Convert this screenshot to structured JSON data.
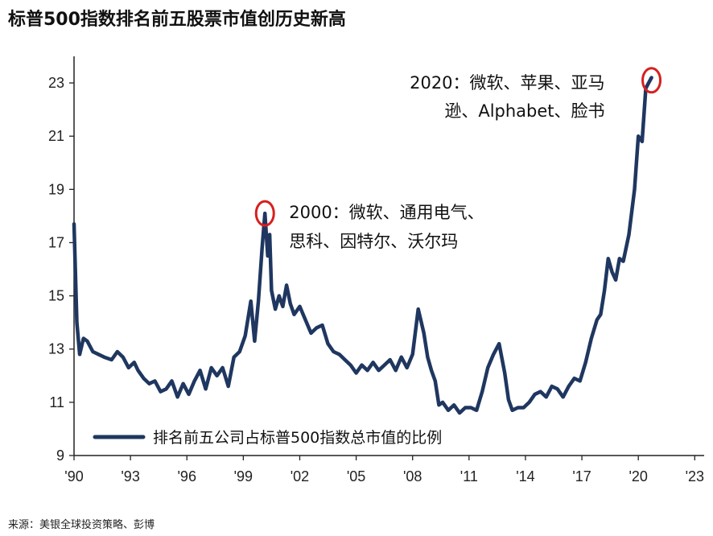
{
  "title": "标普500指数排名前五股票市值创历史新高",
  "source": "来源：美银全球投资策略、彭博",
  "colors": {
    "series": "#1f3760",
    "highlight": "#d62020",
    "axis": "#222222"
  },
  "chart_data": {
    "type": "line",
    "title": "标普500指数排名前五股票市值创历史新高",
    "xlabel": "",
    "ylabel": "",
    "xlim": [
      1990,
      2023.5
    ],
    "ylim": [
      9,
      24
    ],
    "grid": false,
    "legend_position": "bottom-left",
    "y_ticks": [
      9,
      11,
      13,
      15,
      17,
      19,
      21,
      23
    ],
    "x_tick_labels": [
      {
        "x": 1990,
        "label": "'90"
      },
      {
        "x": 1993,
        "label": "'93"
      },
      {
        "x": 1996,
        "label": "'96"
      },
      {
        "x": 1999,
        "label": "'99"
      },
      {
        "x": 2002,
        "label": "'02"
      },
      {
        "x": 2005,
        "label": "'05"
      },
      {
        "x": 2008,
        "label": "'08"
      },
      {
        "x": 2011,
        "label": "'11"
      },
      {
        "x": 2014,
        "label": "'14"
      },
      {
        "x": 2017,
        "label": "'17"
      },
      {
        "x": 2020,
        "label": "'20"
      },
      {
        "x": 2023,
        "label": "'23"
      }
    ],
    "series": [
      {
        "name": "排名前五公司占标普500指数总市值的比例",
        "x": [
          1990.0,
          1990.15,
          1990.3,
          1990.5,
          1990.7,
          1991.0,
          1991.3,
          1991.6,
          1992.0,
          1992.3,
          1992.6,
          1992.9,
          1993.2,
          1993.4,
          1993.7,
          1994.0,
          1994.3,
          1994.6,
          1994.9,
          1995.2,
          1995.5,
          1995.8,
          1996.1,
          1996.4,
          1996.7,
          1997.0,
          1997.3,
          1997.6,
          1997.9,
          1998.2,
          1998.5,
          1998.8,
          1999.1,
          1999.4,
          1999.6,
          1999.8,
          2000.0,
          2000.15,
          2000.3,
          2000.4,
          2000.5,
          2000.7,
          2000.9,
          2001.1,
          2001.3,
          2001.5,
          2001.7,
          2002.0,
          2002.3,
          2002.6,
          2002.9,
          2003.2,
          2003.5,
          2003.8,
          2004.1,
          2004.4,
          2004.7,
          2005.0,
          2005.3,
          2005.6,
          2005.9,
          2006.2,
          2006.5,
          2006.8,
          2007.1,
          2007.4,
          2007.7,
          2008.0,
          2008.3,
          2008.6,
          2008.8,
          2009.0,
          2009.2,
          2009.4,
          2009.6,
          2009.9,
          2010.2,
          2010.5,
          2010.8,
          2011.1,
          2011.4,
          2011.7,
          2012.0,
          2012.3,
          2012.6,
          2012.9,
          2013.1,
          2013.3,
          2013.6,
          2013.9,
          2014.2,
          2014.5,
          2014.8,
          2015.1,
          2015.4,
          2015.7,
          2016.0,
          2016.3,
          2016.6,
          2016.9,
          2017.2,
          2017.5,
          2017.8,
          2018.0,
          2018.2,
          2018.4,
          2018.6,
          2018.8,
          2019.0,
          2019.2,
          2019.5,
          2019.8,
          2020.0,
          2020.2,
          2020.4,
          2020.55,
          2020.7
        ],
        "values": [
          17.7,
          14.0,
          12.8,
          13.4,
          13.3,
          12.9,
          12.8,
          12.7,
          12.6,
          12.9,
          12.7,
          12.3,
          12.5,
          12.2,
          11.9,
          11.7,
          11.8,
          11.4,
          11.5,
          11.8,
          11.2,
          11.7,
          11.3,
          11.8,
          12.2,
          11.5,
          12.3,
          12.0,
          12.3,
          11.6,
          12.7,
          12.9,
          13.5,
          14.8,
          13.3,
          14.8,
          16.8,
          18.1,
          16.5,
          17.3,
          15.2,
          14.5,
          15.0,
          14.6,
          15.4,
          14.7,
          14.3,
          14.6,
          14.1,
          13.6,
          13.8,
          13.9,
          13.2,
          12.9,
          12.8,
          12.6,
          12.4,
          12.1,
          12.4,
          12.2,
          12.5,
          12.2,
          12.4,
          12.6,
          12.2,
          12.7,
          12.3,
          12.8,
          14.5,
          13.6,
          12.7,
          12.2,
          11.8,
          10.9,
          11.0,
          10.7,
          10.9,
          10.6,
          10.8,
          10.8,
          10.7,
          11.4,
          12.3,
          12.8,
          13.2,
          12.1,
          11.1,
          10.7,
          10.8,
          10.8,
          11.0,
          11.3,
          11.4,
          11.2,
          11.6,
          11.5,
          11.2,
          11.6,
          11.9,
          11.8,
          12.5,
          13.4,
          14.1,
          14.3,
          15.2,
          16.4,
          15.9,
          15.6,
          16.4,
          16.3,
          17.3,
          19.0,
          21.0,
          20.8,
          22.8,
          23.0,
          23.2
        ]
      }
    ],
    "annotations": [
      {
        "lines": [
          "2000：微软、通用电气、",
          "思科、因特尔、沃尔玛"
        ],
        "target_x": 2000.15,
        "target_y": 18.1
      },
      {
        "lines": [
          "2020：微软、苹果、亚马",
          "逊、Alphabet、脸书"
        ],
        "target_x": 2020.7,
        "target_y": 23.1
      }
    ]
  }
}
